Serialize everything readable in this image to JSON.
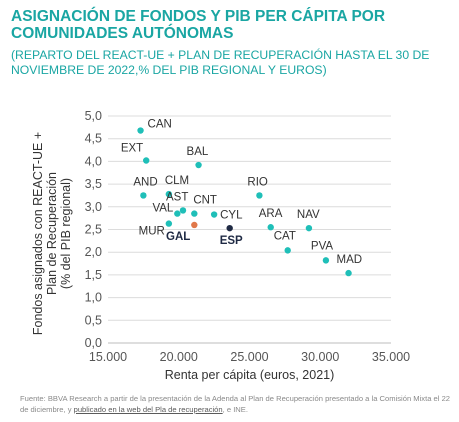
{
  "title": "ASIGNACIÓN DE FONDOS Y PIB PER CÁPITA POR COMUNIDADES AUTÓNOMAS",
  "subtitle": "(REPARTO DEL REACT-UE + PLAN DE RECUPERACIÓN HASTA EL 30 DE NOVIEMBRE DE 2022,% DEL PIB REGIONAL Y EUROS)",
  "footer": {
    "prefix": "Fuente: BBVA Research a partir de la presentación de la Adenda al Plan de Recuperación presentado a la Comisión Mixta el 22 de diciembre, y ",
    "link": "publicado en la web del Pla de recuperación",
    "suffix": ", e INE."
  },
  "chart_data": {
    "type": "scatter",
    "xlabel": "Renta per cápita (euros, 2021)",
    "ylabel": "Fondos asignados con REACT-UE + Plan de Recuperación (% del PIB regional)",
    "xlim": [
      15000,
      35000
    ],
    "ylim": [
      0,
      5
    ],
    "x_ticks": [
      "15.000",
      "20.000",
      "25.000",
      "30.000",
      "35.000"
    ],
    "y_ticks": [
      "0,0",
      "0,5",
      "1,0",
      "1,5",
      "2,0",
      "2,5",
      "3,0",
      "3,5",
      "4,0",
      "4,5",
      "5,0"
    ],
    "grid": "horizontal",
    "colors": {
      "default": "#1fbfb8",
      "highlight": "#e0784a",
      "national": "#1f2a44"
    },
    "points": [
      {
        "label": "CAN",
        "x": 17300,
        "y": 4.68,
        "group": "default"
      },
      {
        "label": "EXT",
        "x": 17700,
        "y": 4.02,
        "group": "default"
      },
      {
        "label": "BAL",
        "x": 21400,
        "y": 3.92,
        "group": "default"
      },
      {
        "label": "AND",
        "x": 17500,
        "y": 3.25,
        "group": "default"
      },
      {
        "label": "CLM",
        "x": 19300,
        "y": 3.28,
        "group": "default"
      },
      {
        "label": "RIO",
        "x": 25700,
        "y": 3.25,
        "group": "default"
      },
      {
        "label": "AST",
        "x": 20300,
        "y": 2.92,
        "group": "default"
      },
      {
        "label": "CNT",
        "x": 21100,
        "y": 2.85,
        "group": "default"
      },
      {
        "label": "VAL",
        "x": 19900,
        "y": 2.85,
        "group": "default"
      },
      {
        "label": "CYL",
        "x": 22500,
        "y": 2.83,
        "group": "default"
      },
      {
        "label": "ARA",
        "x": 26500,
        "y": 2.55,
        "group": "default"
      },
      {
        "label": "NAV",
        "x": 29200,
        "y": 2.53,
        "group": "default"
      },
      {
        "label": "MUR",
        "x": 19300,
        "y": 2.63,
        "group": "default"
      },
      {
        "label": "GAL",
        "x": 21100,
        "y": 2.6,
        "group": "highlight"
      },
      {
        "label": "ESP",
        "x": 23600,
        "y": 2.53,
        "group": "national"
      },
      {
        "label": "CAT",
        "x": 27700,
        "y": 2.04,
        "group": "default"
      },
      {
        "label": "PVA",
        "x": 30400,
        "y": 1.82,
        "group": "default"
      },
      {
        "label": "MAD",
        "x": 32000,
        "y": 1.54,
        "group": "default"
      }
    ]
  }
}
